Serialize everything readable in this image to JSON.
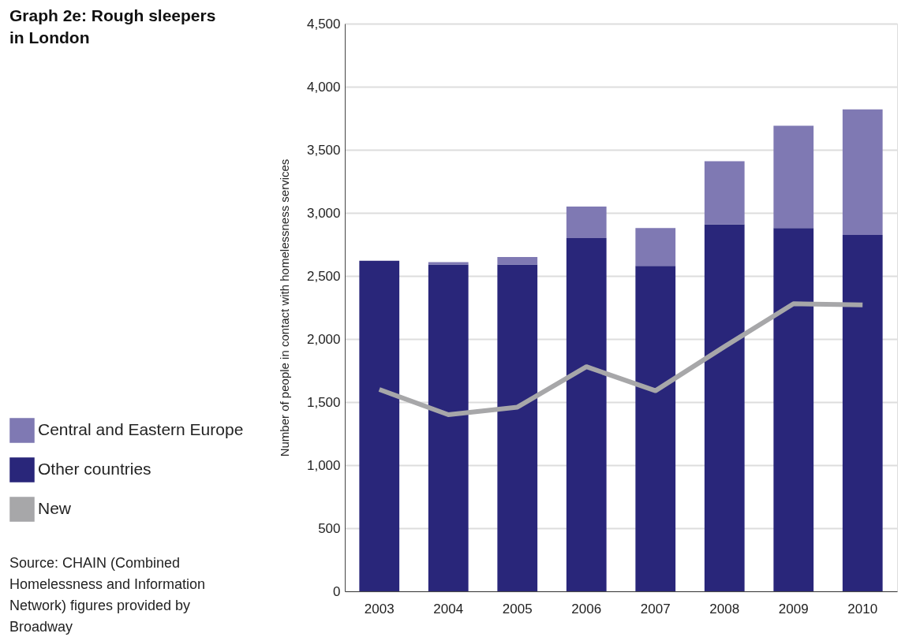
{
  "chart_data": {
    "type": "bar",
    "title": "Graph 2e: Rough sleepers in London",
    "ylabel": "Number of people in contact with homelessness services",
    "categories": [
      "2003",
      "2004",
      "2005",
      "2006",
      "2007",
      "2008",
      "2009",
      "2010"
    ],
    "stacked": true,
    "series": [
      {
        "name": "Other countries",
        "color": "#29267a",
        "values": [
          2620,
          2590,
          2590,
          2800,
          2580,
          2910,
          2880,
          2825
        ]
      },
      {
        "name": "Central and Eastern Europe",
        "color": "#7f79b3",
        "values": [
          0,
          20,
          60,
          250,
          300,
          500,
          810,
          995
        ]
      },
      {
        "name": "New",
        "color": "#a7a7a9",
        "type": "line",
        "values": [
          1600,
          1400,
          1460,
          1780,
          1590,
          1940,
          2280,
          2270
        ]
      }
    ],
    "ylim": [
      0,
      4500
    ],
    "yticks": [
      0,
      {
        "value": 500,
        "label": "500"
      },
      {
        "value": 1000,
        "label": "1,000"
      },
      {
        "value": 1500,
        "label": "1,500"
      },
      {
        "value": 2000,
        "label": "2,000"
      },
      {
        "value": 2500,
        "label": "2,500"
      },
      {
        "value": 3000,
        "label": "3,000"
      },
      {
        "value": 3500,
        "label": "3,500"
      },
      {
        "value": 4000,
        "label": "4,000"
      },
      {
        "value": 4500,
        "label": "4,500"
      }
    ],
    "grid": "y",
    "legend": "left",
    "annotations": [
      "Source: CHAIN (Combined Homelessness and Information Network) figures provided by Broadway"
    ]
  }
}
